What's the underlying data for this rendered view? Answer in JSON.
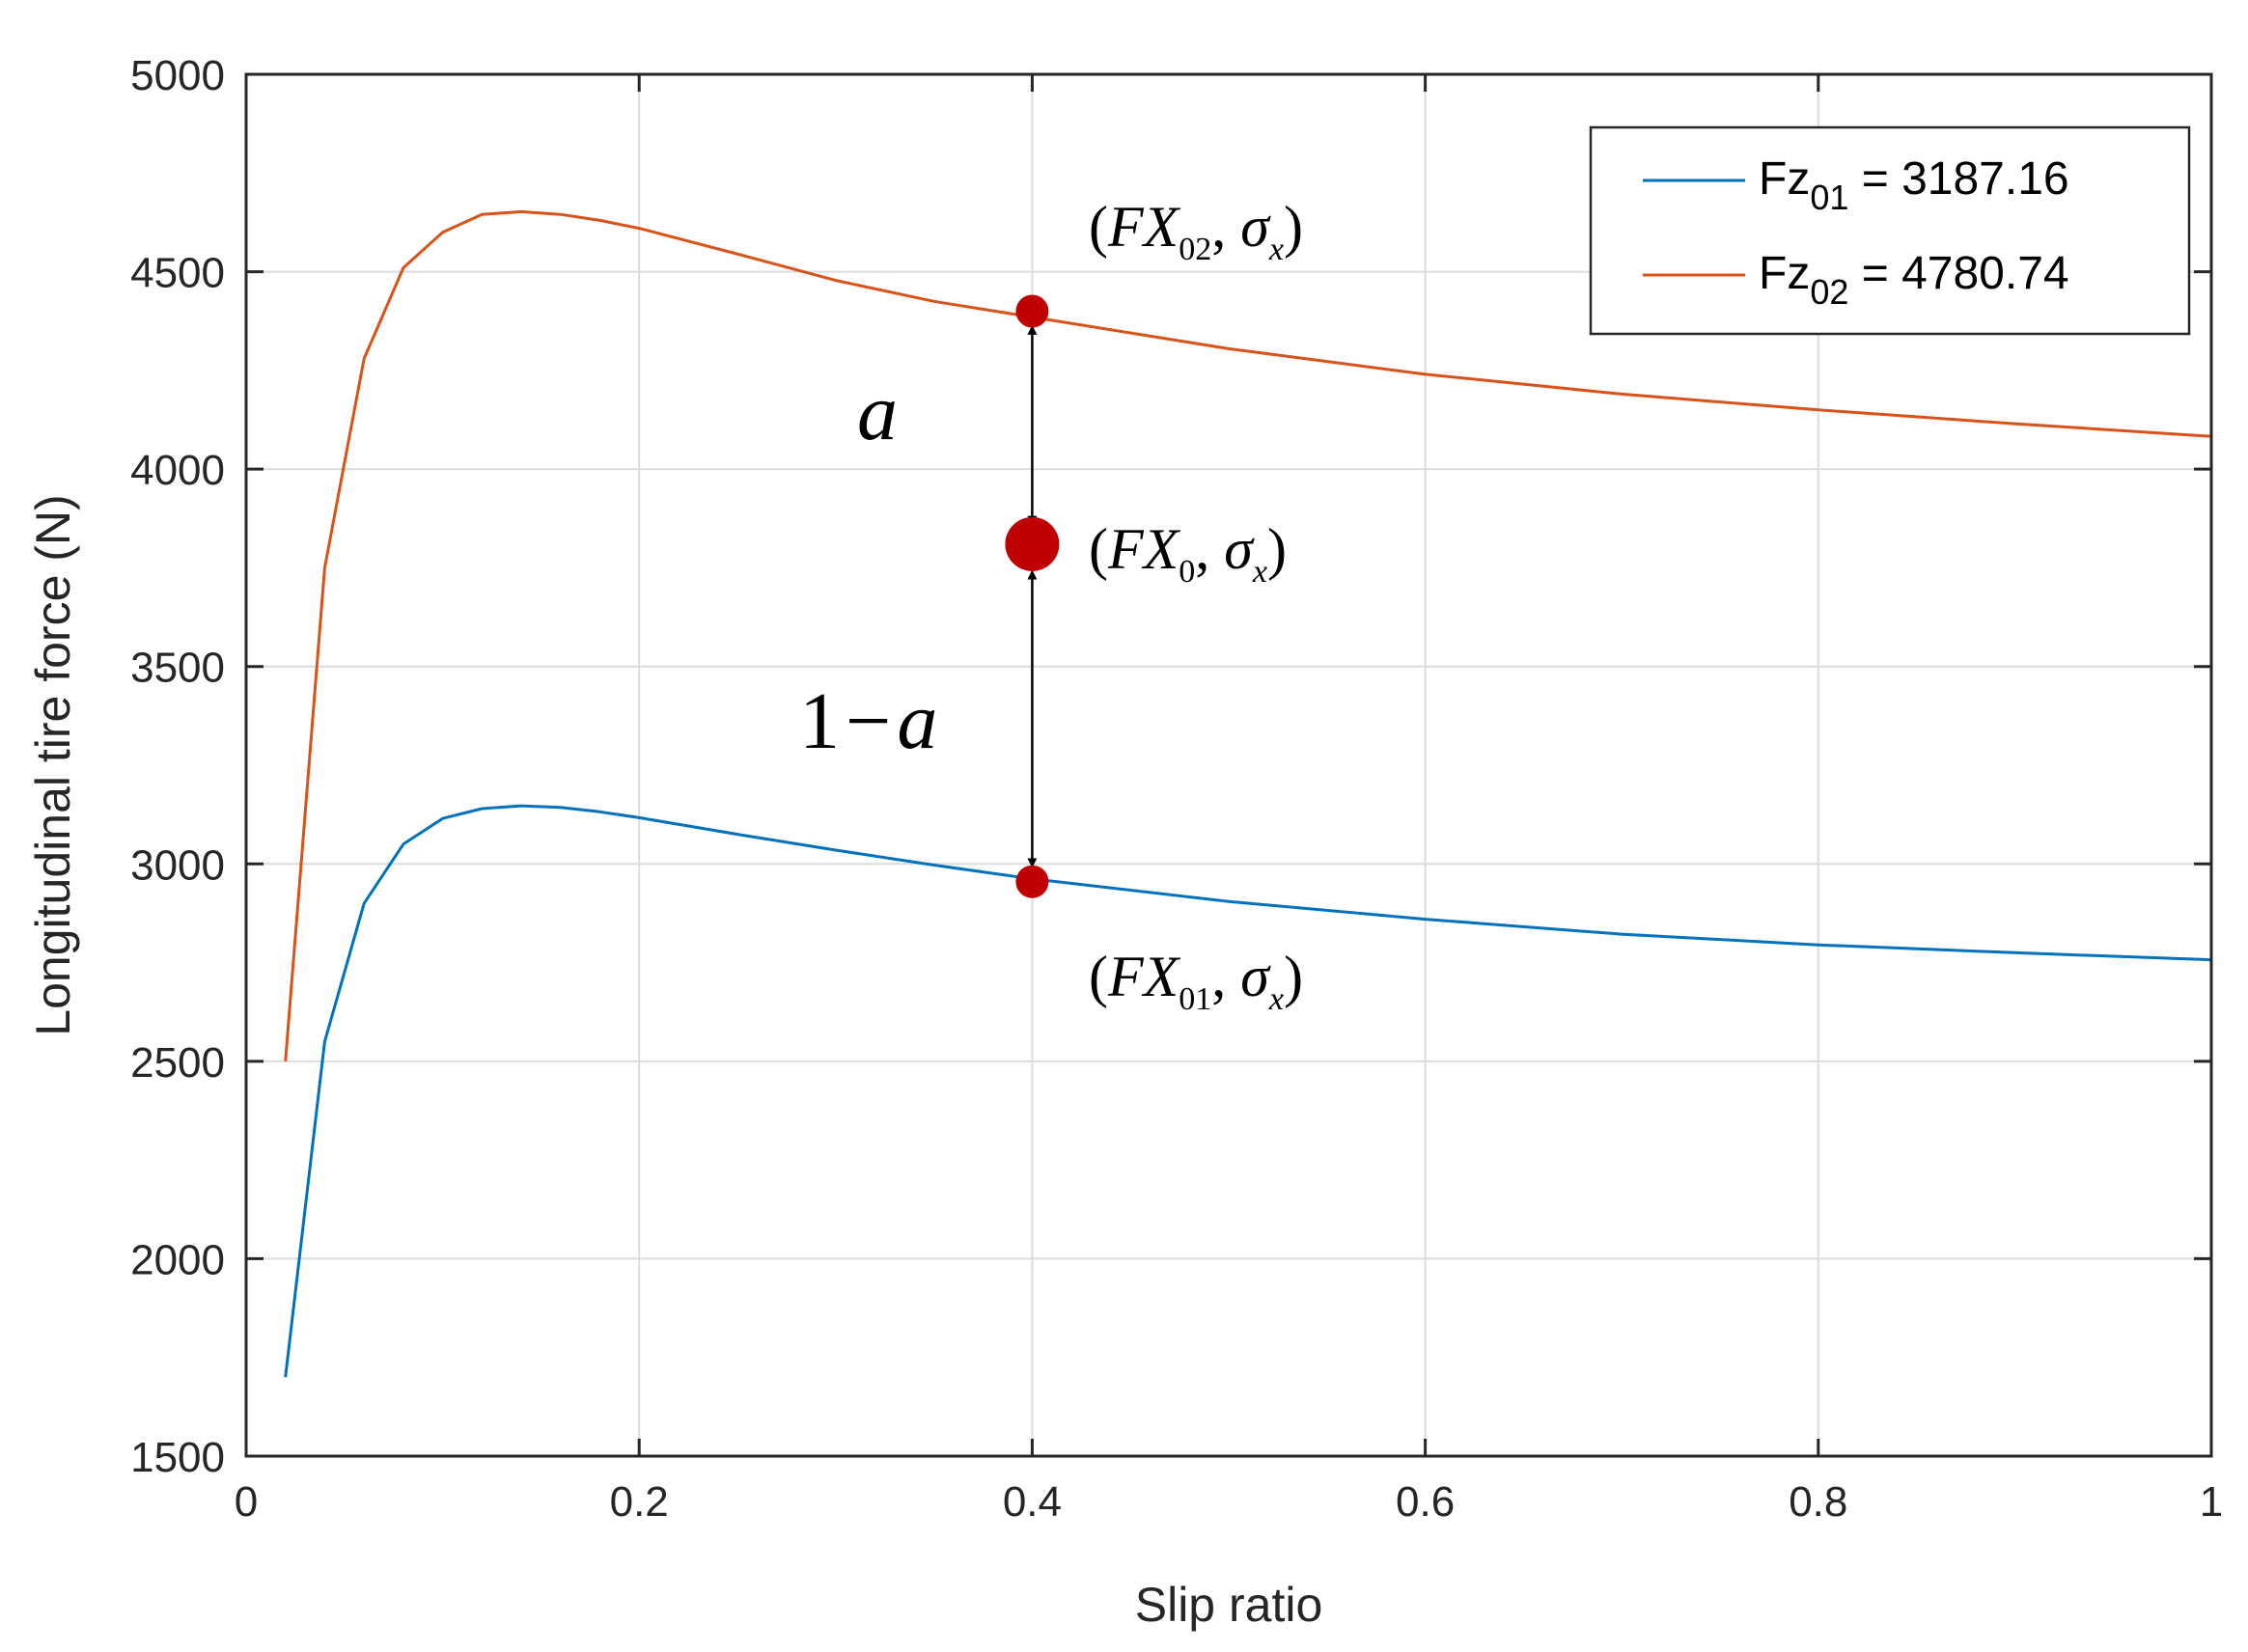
{
  "chart_data": {
    "type": "line",
    "xlabel": "Slip ratio",
    "ylabel": "Longitudinal tire force (N)",
    "xlim": [
      0,
      1
    ],
    "ylim": [
      1500,
      5000
    ],
    "grid": true,
    "x_ticks": [
      0,
      0.2,
      0.4,
      0.6,
      0.8,
      1
    ],
    "x_tick_labels": [
      "0",
      "0.2",
      "0.4",
      "0.6",
      "0.8",
      "1"
    ],
    "y_ticks": [
      1500,
      2000,
      2500,
      3000,
      3500,
      4000,
      4500,
      5000
    ],
    "y_tick_labels": [
      "1500",
      "2000",
      "2500",
      "3000",
      "3500",
      "4000",
      "4500",
      "5000"
    ],
    "legend_position": "top-right",
    "series": [
      {
        "name": "Fz01 = 3187.16",
        "legend_main": "Fz",
        "legend_sub": "01",
        "legend_value": " = 3187.16",
        "color": "#0072BD",
        "x": [
          0.02,
          0.04,
          0.06,
          0.08,
          0.1,
          0.12,
          0.14,
          0.16,
          0.18,
          0.2,
          0.25,
          0.3,
          0.35,
          0.4,
          0.5,
          0.6,
          0.7,
          0.8,
          0.9,
          1.0
        ],
        "y": [
          1700,
          2550,
          2900,
          3050,
          3115,
          3140,
          3147,
          3143,
          3132,
          3117,
          3075,
          3035,
          2997,
          2962,
          2905,
          2860,
          2822,
          2795,
          2775,
          2757
        ]
      },
      {
        "name": "Fz02 = 4780.74",
        "legend_main": "Fz",
        "legend_sub": "02",
        "legend_value": " = 4780.74",
        "color": "#D95319",
        "x": [
          0.02,
          0.04,
          0.06,
          0.08,
          0.1,
          0.12,
          0.14,
          0.16,
          0.18,
          0.2,
          0.25,
          0.3,
          0.35,
          0.4,
          0.5,
          0.6,
          0.7,
          0.8,
          0.9,
          1.0
        ],
        "y": [
          2500,
          3750,
          4280,
          4510,
          4600,
          4645,
          4652,
          4645,
          4630,
          4610,
          4545,
          4478,
          4425,
          4385,
          4305,
          4240,
          4190,
          4150,
          4115,
          4083
        ]
      }
    ],
    "markers": [
      {
        "name": "point-fx02",
        "x": 0.4,
        "y": 4400,
        "size": "small",
        "color": "#C00000"
      },
      {
        "name": "point-fx0",
        "x": 0.4,
        "y": 3810,
        "size": "large",
        "color": "#C00000"
      },
      {
        "name": "point-fx01",
        "x": 0.4,
        "y": 2955,
        "size": "small",
        "color": "#C00000"
      }
    ],
    "arrows": [
      {
        "name": "arrow-a",
        "x": 0.4,
        "y_from": 4360,
        "y_to": 3862
      },
      {
        "name": "arrow-1-minus-a",
        "x": 0.4,
        "y_from": 3740,
        "y_to": 2995
      }
    ],
    "annotations": {
      "fx02": {
        "open": "(",
        "main": "FX",
        "sub": "02",
        "comma": ", ",
        "sigma": "σ",
        "sigma_sub": "x",
        "close": ")"
      },
      "fx0": {
        "open": "(",
        "main": "FX",
        "sub": "0",
        "comma": ", ",
        "sigma": "σ",
        "sigma_sub": "x",
        "close": ")"
      },
      "fx01": {
        "open": "(",
        "main": "FX",
        "sub": "01",
        "comma": ", ",
        "sigma": "σ",
        "sigma_sub": "x",
        "close": ")"
      },
      "a_label": "a",
      "one_minus_a": {
        "one": "1",
        "minus": "−",
        "a": "a"
      }
    }
  }
}
